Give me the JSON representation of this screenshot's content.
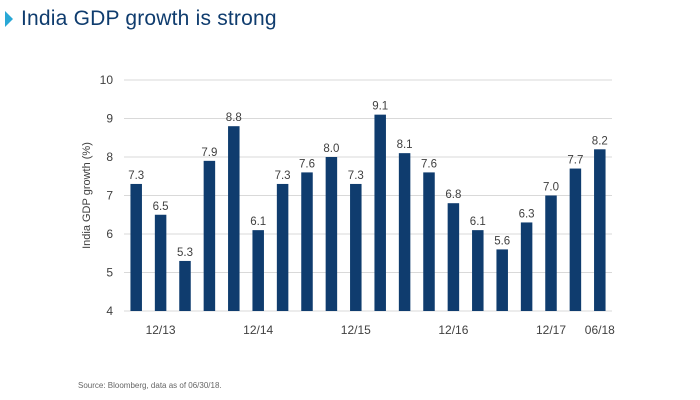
{
  "header": {
    "title": "India GDP growth is strong"
  },
  "source_note": "Source: Bloomberg, data as of 06/30/18.",
  "colors": {
    "bar": "#0f3c6e",
    "title": "#0f3c6e",
    "accent_arrow": "#29a8d6",
    "grid": "#d9d9d9",
    "text": "#404040"
  },
  "chart_data": {
    "type": "bar",
    "ylabel": "India GDP growth (%)",
    "ylim": [
      4,
      10
    ],
    "yticks": [
      4,
      5,
      6,
      7,
      8,
      9,
      10
    ],
    "grid": true,
    "values": [
      7.3,
      6.5,
      5.3,
      7.9,
      8.8,
      6.1,
      7.3,
      7.6,
      8.0,
      7.3,
      9.1,
      8.1,
      7.6,
      6.8,
      6.1,
      5.6,
      6.3,
      7.0,
      7.7,
      8.2
    ],
    "data_labels": [
      "7.3",
      "6.5",
      "5.3",
      "7.9",
      "8.8",
      "6.1",
      "7.3",
      "7.6",
      "8.0",
      "7.3",
      "9.1",
      "8.1",
      "7.6",
      "6.8",
      "6.1",
      "5.6",
      "6.3",
      "7.0",
      "7.7",
      "8.2"
    ],
    "xtick_labels": [
      {
        "label": "12/13",
        "bar_index": 1
      },
      {
        "label": "12/14",
        "bar_index": 5
      },
      {
        "label": "12/15",
        "bar_index": 9
      },
      {
        "label": "12/16",
        "bar_index": 13
      },
      {
        "label": "12/17",
        "bar_index": 17
      },
      {
        "label": "06/18",
        "bar_index": 19
      }
    ]
  }
}
